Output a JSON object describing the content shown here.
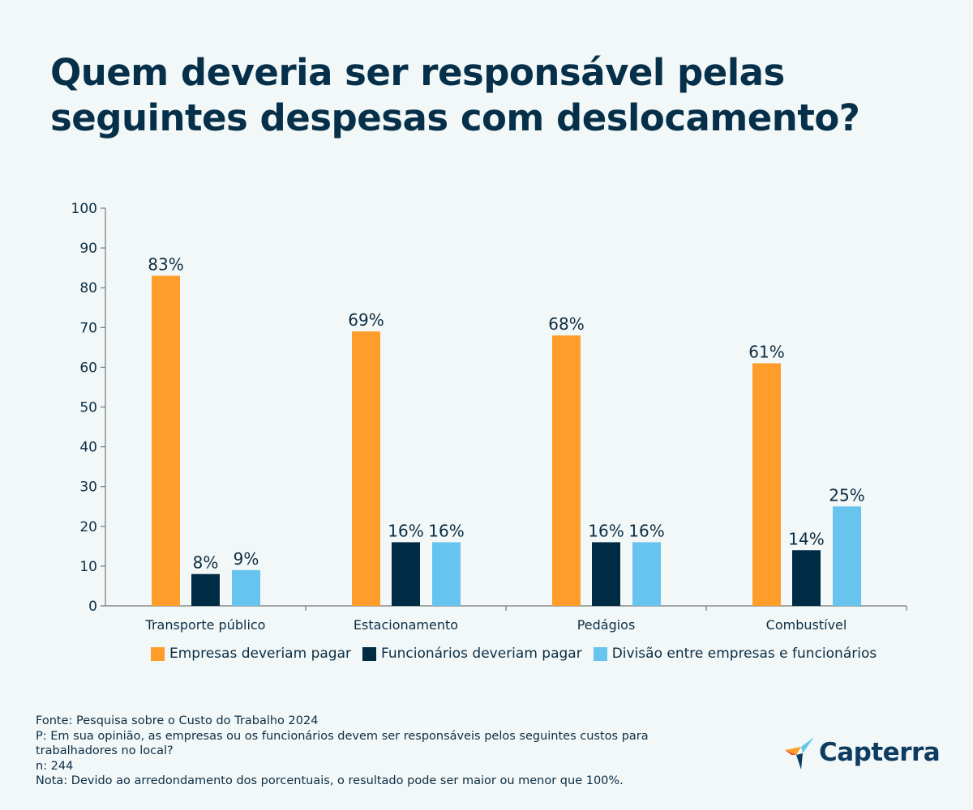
{
  "title": "Quem deveria ser responsável pelas seguintes despesas com deslocamento?",
  "chart_data": {
    "type": "bar",
    "categories": [
      "Transporte público",
      "Estacionamento",
      "Pedágios",
      "Combustível"
    ],
    "series": [
      {
        "name": "Empresas deveriam pagar",
        "color": "#ff9d2a",
        "values": [
          83,
          69,
          68,
          61
        ],
        "labels": [
          "83%",
          "69%",
          "68%",
          "61%"
        ]
      },
      {
        "name": "Funcionários deveriam pagar",
        "color": "#002b45",
        "values": [
          8,
          16,
          16,
          14
        ],
        "labels": [
          "8%",
          "16%",
          "16%",
          "14%"
        ]
      },
      {
        "name": "Divisão entre empresas e funcionários",
        "color": "#66c4ee",
        "values": [
          9,
          16,
          16,
          25
        ],
        "labels": [
          "9%",
          "16%",
          "16%",
          "25%"
        ]
      }
    ],
    "yticks": [
      "0",
      "10",
      "20",
      "30",
      "40",
      "50",
      "60",
      "70",
      "80",
      "90",
      "100"
    ],
    "ylim": [
      0,
      100
    ],
    "grid": false,
    "legend": "bottom"
  },
  "footer": {
    "source": "Fonte: Pesquisa sobre o Custo do Trabalho 2024",
    "question": "P: Em sua opinião, as empresas ou os funcionários devem ser responsáveis pelos seguintes custos para\ntrabalhadores no local?",
    "n": "n: 244",
    "note": "Nota: Devido ao arredondamento dos porcentuais, o resultado pode ser maior ou menor que 100%."
  },
  "logo": {
    "text": "Capterra"
  }
}
